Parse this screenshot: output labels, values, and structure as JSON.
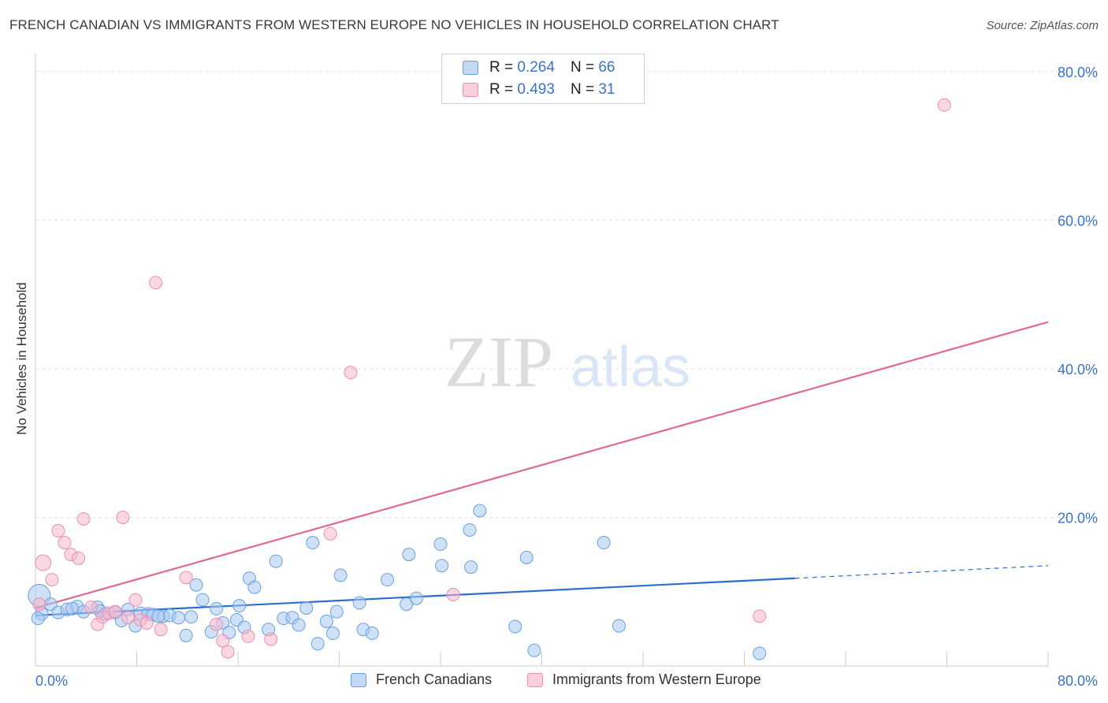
{
  "header": {
    "title": "FRENCH CANADIAN VS IMMIGRANTS FROM WESTERN EUROPE NO VEHICLES IN HOUSEHOLD CORRELATION CHART",
    "source": "Source: ZipAtlas.com"
  },
  "watermark": {
    "zip": "ZIP",
    "atlas": "atlas"
  },
  "legend": {
    "r_label": "R =",
    "n_label": "N =",
    "rows": [
      {
        "r": "0.264",
        "n": "66",
        "color": "#a8c8f0"
      },
      {
        "r": "0.493",
        "n": "31",
        "color": "#f6b8cc"
      }
    ]
  },
  "chart_data": {
    "type": "scatter",
    "title": "FRENCH CANADIAN VS IMMIGRANTS FROM WESTERN EUROPE NO VEHICLES IN HOUSEHOLD CORRELATION CHART",
    "xlabel": "",
    "ylabel": "No Vehicles in Household",
    "xlim": [
      0,
      80
    ],
    "ylim": [
      0,
      82
    ],
    "x_tick_labels": [
      "0.0%",
      "80.0%"
    ],
    "y_ticks": [
      20,
      40,
      60,
      80
    ],
    "y_tick_labels": [
      "20.0%",
      "40.0%",
      "60.0%",
      "80.0%"
    ],
    "grid": true,
    "legend_position": "top-center",
    "series": [
      {
        "name": "French Canadians",
        "color": "#a8c8f0",
        "stroke": "#6a9fe0",
        "line_color": "#2b6fce",
        "trend": {
          "x0": 0,
          "y0": 6.8,
          "x1": 60,
          "y1": 11.8,
          "dash_x1": 80,
          "dash_y1": 13.5
        },
        "points": [
          [
            0.3,
            9.5
          ],
          [
            0.5,
            7
          ],
          [
            1.2,
            8.3
          ],
          [
            1.8,
            7.2
          ],
          [
            2.5,
            7.6
          ],
          [
            3.3,
            8
          ],
          [
            3.8,
            7.3
          ],
          [
            4.9,
            7.9
          ],
          [
            5.5,
            7
          ],
          [
            6.3,
            7.2
          ],
          [
            6.8,
            6.1
          ],
          [
            7.3,
            7.6
          ],
          [
            7.9,
            5.4
          ],
          [
            8.3,
            7.1
          ],
          [
            8.9,
            7
          ],
          [
            9.3,
            6.9
          ],
          [
            10.1,
            6.7
          ],
          [
            10.6,
            6.8
          ],
          [
            11.3,
            6.5
          ],
          [
            11.9,
            4.1
          ],
          [
            12.3,
            6.6
          ],
          [
            12.7,
            10.9
          ],
          [
            13.2,
            8.9
          ],
          [
            13.9,
            4.6
          ],
          [
            14.3,
            7.7
          ],
          [
            14.8,
            5.8
          ],
          [
            15.3,
            4.5
          ],
          [
            15.9,
            6.2
          ],
          [
            16.5,
            5.2
          ],
          [
            16.9,
            11.8
          ],
          [
            17.3,
            10.6
          ],
          [
            18.4,
            4.9
          ],
          [
            19,
            14.1
          ],
          [
            19.6,
            6.4
          ],
          [
            20.3,
            6.5
          ],
          [
            20.8,
            5.5
          ],
          [
            21.4,
            7.8
          ],
          [
            21.9,
            16.6
          ],
          [
            22.3,
            3
          ],
          [
            23,
            6
          ],
          [
            23.5,
            4.4
          ],
          [
            23.8,
            7.3
          ],
          [
            24.1,
            12.2
          ],
          [
            25.6,
            8.5
          ],
          [
            25.9,
            4.9
          ],
          [
            26.6,
            4.4
          ],
          [
            27.8,
            11.6
          ],
          [
            29.3,
            8.3
          ],
          [
            29.5,
            15
          ],
          [
            32,
            16.4
          ],
          [
            32.1,
            13.5
          ],
          [
            34.3,
            18.3
          ],
          [
            34.4,
            13.3
          ],
          [
            35.1,
            20.9
          ],
          [
            37.9,
            5.3
          ],
          [
            38.8,
            14.6
          ],
          [
            39.4,
            2.1
          ],
          [
            44.9,
            16.6
          ],
          [
            46.1,
            5.4
          ],
          [
            57.2,
            1.7
          ],
          [
            0.2,
            6.4
          ],
          [
            2.9,
            7.7
          ],
          [
            5.1,
            7.4
          ],
          [
            9.7,
            6.7
          ],
          [
            16.1,
            8.1
          ],
          [
            30.1,
            9.1
          ]
        ]
      },
      {
        "name": "Immigrants from Western Europe",
        "color": "#f6b8cc",
        "stroke": "#ec8fae",
        "line_color": "#e06a94",
        "trend": {
          "x0": 0,
          "y0": 7.8,
          "x1": 80,
          "y1": 46.3
        },
        "points": [
          [
            0.3,
            8.3
          ],
          [
            0.6,
            13.9
          ],
          [
            1.3,
            11.6
          ],
          [
            1.8,
            18.2
          ],
          [
            2.3,
            16.6
          ],
          [
            2.8,
            15
          ],
          [
            3.4,
            14.5
          ],
          [
            3.8,
            19.8
          ],
          [
            4.4,
            7.9
          ],
          [
            4.9,
            5.6
          ],
          [
            5.3,
            6.6
          ],
          [
            5.8,
            7.1
          ],
          [
            6.3,
            7.3
          ],
          [
            6.9,
            20
          ],
          [
            7.3,
            6.5
          ],
          [
            7.9,
            8.9
          ],
          [
            8.3,
            6.2
          ],
          [
            8.8,
            5.8
          ],
          [
            9.5,
            51.6
          ],
          [
            9.9,
            4.9
          ],
          [
            11.9,
            11.9
          ],
          [
            14.3,
            5.6
          ],
          [
            14.8,
            3.4
          ],
          [
            15.2,
            1.9
          ],
          [
            16.8,
            4
          ],
          [
            18.6,
            3.6
          ],
          [
            23.3,
            17.8
          ],
          [
            24.9,
            39.5
          ],
          [
            33,
            9.6
          ],
          [
            57.2,
            6.7
          ],
          [
            71.8,
            75.5
          ]
        ]
      }
    ]
  }
}
